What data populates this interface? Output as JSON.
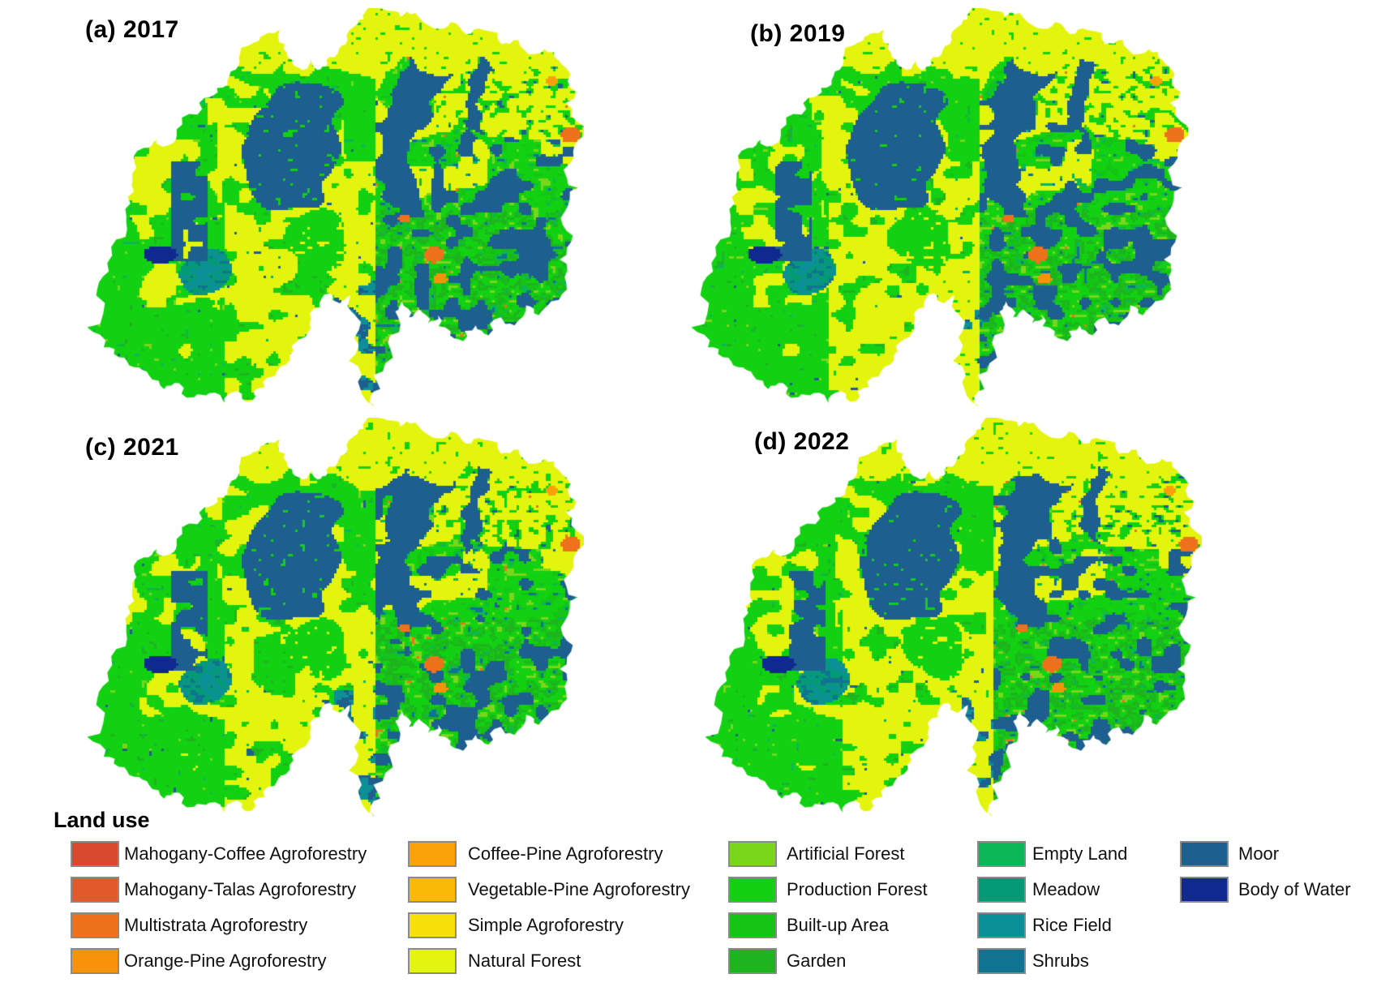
{
  "panels": [
    {
      "id": "a",
      "label": "(a) 2017",
      "year": 2017
    },
    {
      "id": "b",
      "label": "(b) 2019",
      "year": 2019
    },
    {
      "id": "c",
      "label": "(c) 2021",
      "year": 2021
    },
    {
      "id": "d",
      "label": "(d) 2022",
      "year": 2022
    }
  ],
  "legend": {
    "title": "Land use",
    "swatch_border_color": "#8A8A8A",
    "columns": [
      [
        {
          "key": "mahogany_coffee",
          "label": "Mahogany-Coffee Agroforestry",
          "color": "#D9492E"
        },
        {
          "key": "mahogany_talas",
          "label": "Mahogany-Talas Agroforestry",
          "color": "#E25A2B"
        },
        {
          "key": "multistrata",
          "label": "Multistrata Agroforestry",
          "color": "#EE711C"
        },
        {
          "key": "orange_pine",
          "label": "Orange-Pine Agroforestry",
          "color": "#F7930B"
        }
      ],
      [
        {
          "key": "coffee_pine",
          "label": "Coffee-Pine Agroforestry",
          "color": "#F9A106"
        },
        {
          "key": "vegetable_pine",
          "label": "Vegetable-Pine Agroforestry",
          "color": "#FAB905"
        },
        {
          "key": "simple_agroforestry",
          "label": "Simple Agroforestry",
          "color": "#F8E10A"
        },
        {
          "key": "natural_forest",
          "label": "Natural Forest",
          "color": "#E3F50C"
        }
      ],
      [
        {
          "key": "artificial_forest",
          "label": "Artificial Forest",
          "color": "#79D61B"
        },
        {
          "key": "production_forest",
          "label": "Production Forest",
          "color": "#12D112"
        },
        {
          "key": "builtup_area",
          "label": "Built-up Area",
          "color": "#14C514"
        },
        {
          "key": "garden",
          "label": "Garden",
          "color": "#1DB41E"
        }
      ],
      [
        {
          "key": "empty_land",
          "label": "Empty Land",
          "color": "#0CB757"
        },
        {
          "key": "meadow",
          "label": "Meadow",
          "color": "#059A76"
        },
        {
          "key": "rice_field",
          "label": "Rice Field",
          "color": "#0C9097"
        },
        {
          "key": "shrubs",
          "label": "Shrubs",
          "color": "#0F7391"
        }
      ],
      [
        {
          "key": "moor",
          "label": "Moor",
          "color": "#1D5F8F"
        },
        {
          "key": "body_of_water",
          "label": "Body of Water",
          "color": "#10298F"
        }
      ]
    ]
  }
}
